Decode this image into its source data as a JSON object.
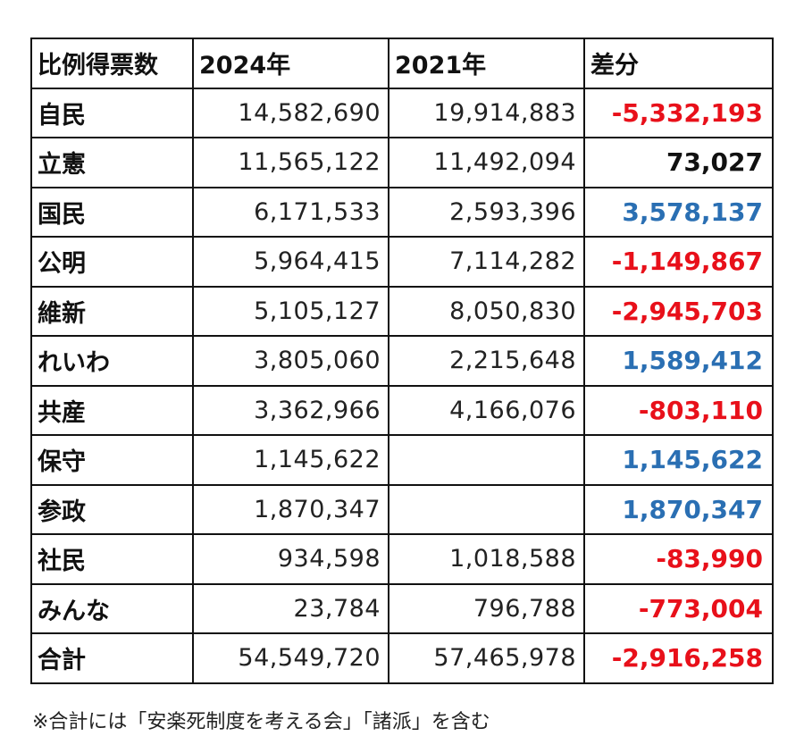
{
  "table": {
    "headers": [
      "比例得票数",
      "2024年",
      "2021年",
      "差分"
    ],
    "rows": [
      {
        "party": "自民",
        "v2024": "14,582,690",
        "v2021": "19,914,883",
        "diff": "-5,332,193",
        "diff_color": "#e8101a"
      },
      {
        "party": "立憲",
        "v2024": "11,565,122",
        "v2021": "11,492,094",
        "diff": "73,027",
        "diff_color": "#111111"
      },
      {
        "party": "国民",
        "v2024": "6,171,533",
        "v2021": "2,593,396",
        "diff": "3,578,137",
        "diff_color": "#2a6fb3"
      },
      {
        "party": "公明",
        "v2024": "5,964,415",
        "v2021": "7,114,282",
        "diff": "-1,149,867",
        "diff_color": "#e8101a"
      },
      {
        "party": "維新",
        "v2024": "5,105,127",
        "v2021": "8,050,830",
        "diff": "-2,945,703",
        "diff_color": "#e8101a"
      },
      {
        "party": "れいわ",
        "v2024": "3,805,060",
        "v2021": "2,215,648",
        "diff": "1,589,412",
        "diff_color": "#2a6fb3"
      },
      {
        "party": "共産",
        "v2024": "3,362,966",
        "v2021": "4,166,076",
        "diff": "-803,110",
        "diff_color": "#e8101a"
      },
      {
        "party": "保守",
        "v2024": "1,145,622",
        "v2021": "",
        "diff": "1,145,622",
        "diff_color": "#2a6fb3"
      },
      {
        "party": "参政",
        "v2024": "1,870,347",
        "v2021": "",
        "diff": "1,870,347",
        "diff_color": "#2a6fb3"
      },
      {
        "party": "社民",
        "v2024": "934,598",
        "v2021": "1,018,588",
        "diff": "-83,990",
        "diff_color": "#e8101a"
      },
      {
        "party": "みんな",
        "v2024": "23,784",
        "v2021": "796,788",
        "diff": "-773,004",
        "diff_color": "#e8101a"
      },
      {
        "party": "合計",
        "v2024": "54,549,720",
        "v2021": "57,465,978",
        "diff": "-2,916,258",
        "diff_color": "#e8101a"
      }
    ]
  },
  "footnote": "※合計には「安楽死制度を考える会」「諸派」を含む"
}
